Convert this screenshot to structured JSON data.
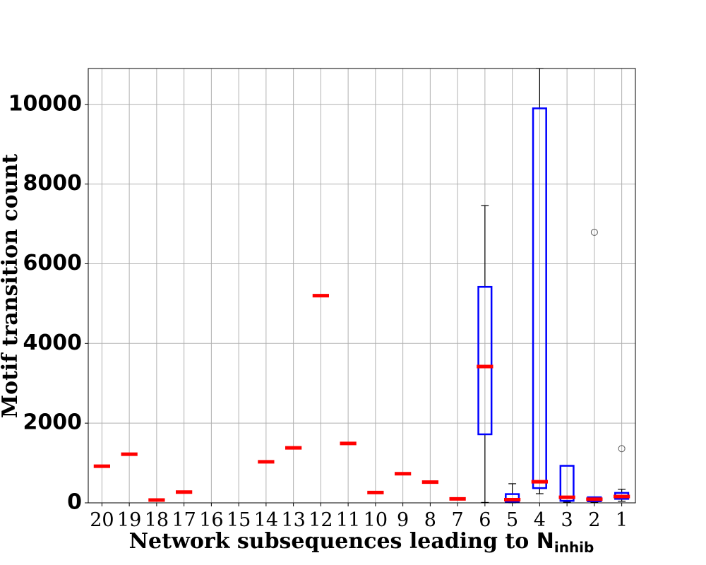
{
  "chart_data": {
    "type": "box",
    "xlabel_prefix": "Network subsequences leading to ",
    "xlabel_symbol": "N",
    "xlabel_subscript": "inhib",
    "ylabel": "Motif transition count",
    "ylim": [
      0,
      10900
    ],
    "yticks": [
      0,
      2000,
      4000,
      6000,
      8000,
      10000
    ],
    "grid": true,
    "colors": {
      "box": "#0000ff",
      "median": "#ff0000",
      "whisker": "#000000",
      "grid": "#b0b0b0",
      "flier": "#555555"
    },
    "categories": [
      "20",
      "19",
      "18",
      "17",
      "16",
      "15",
      "14",
      "13",
      "12",
      "11",
      "10",
      "9",
      "8",
      "7",
      "6",
      "5",
      "4",
      "3",
      "2",
      "1"
    ],
    "boxes": [
      {
        "label": "20",
        "median": 920
      },
      {
        "label": "19",
        "median": 1220
      },
      {
        "label": "18",
        "median": 70
      },
      {
        "label": "17",
        "median": 270
      },
      {
        "label": "16"
      },
      {
        "label": "15"
      },
      {
        "label": "14",
        "median": 1030
      },
      {
        "label": "13",
        "median": 1380
      },
      {
        "label": "12",
        "median": 5200
      },
      {
        "label": "11",
        "median": 1490
      },
      {
        "label": "10",
        "median": 260
      },
      {
        "label": "9",
        "median": 730
      },
      {
        "label": "8",
        "median": 520
      },
      {
        "label": "7",
        "median": 100
      },
      {
        "label": "6",
        "q1": 1720,
        "median": 3420,
        "q3": 5420,
        "whislo": 10,
        "whishi": 7460,
        "fliers": []
      },
      {
        "label": "5",
        "q1": 30,
        "median": 80,
        "q3": 220,
        "whislo": 0,
        "whishi": 480,
        "fliers": []
      },
      {
        "label": "4",
        "q1": 370,
        "median": 530,
        "q3": 9900,
        "whislo": 230,
        "whishi": 10900,
        "fliers": []
      },
      {
        "label": "3",
        "q1": 50,
        "median": 140,
        "q3": 930,
        "whislo": 20,
        "whishi": 930,
        "fliers": []
      },
      {
        "label": "2",
        "q1": 40,
        "median": 90,
        "q3": 140,
        "whislo": 10,
        "whishi": 140,
        "fliers": [
          6790
        ]
      },
      {
        "label": "1",
        "q1": 100,
        "median": 160,
        "q3": 250,
        "whislo": 40,
        "whishi": 340,
        "fliers": [
          1360
        ]
      }
    ]
  }
}
